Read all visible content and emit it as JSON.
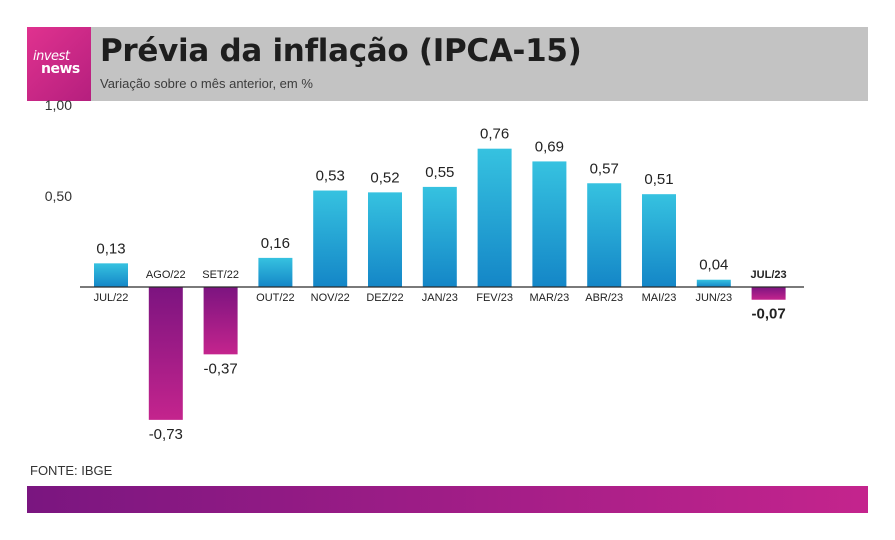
{
  "header": {
    "title": "Prévia da inflação (IPCA-15)",
    "subtitle": "Variação sobre o mês anterior, em %",
    "logo_line1": "invest",
    "logo_line2": "news"
  },
  "source": "FONTE: IBGE",
  "colors": {
    "header_bg": "#c3c3c3",
    "positive_top": "#36c2e0",
    "positive_bottom": "#1486c7",
    "negative_top": "#7c1480",
    "negative_bottom": "#c4248d",
    "brand": "#c4248d"
  },
  "chart_data": {
    "type": "bar",
    "title": "Prévia da inflação (IPCA-15)",
    "ylabel": "Variação sobre o mês anterior, em %",
    "ylim": [
      -0.73,
      1.0
    ],
    "yticks": [
      "1,00",
      "0,50"
    ],
    "ytick_values": [
      1.0,
      0.5
    ],
    "categories": [
      "JUL/22",
      "AGO/22",
      "SET/22",
      "OUT/22",
      "NOV/22",
      "DEZ/22",
      "JAN/23",
      "FEV/23",
      "MAR/23",
      "ABR/23",
      "MAI/23",
      "JUN/23",
      "JUL/23"
    ],
    "values": [
      0.13,
      -0.73,
      -0.37,
      0.16,
      0.53,
      0.52,
      0.55,
      0.76,
      0.69,
      0.57,
      0.51,
      0.04,
      -0.07
    ],
    "labels": [
      "0,13",
      "-0,73",
      "-0,37",
      "0,16",
      "0,53",
      "0,52",
      "0,55",
      "0,76",
      "0,69",
      "0,57",
      "0,51",
      "0,04",
      "-0,07"
    ],
    "highlight": "JUL/23",
    "grid": false,
    "legend": "none"
  }
}
